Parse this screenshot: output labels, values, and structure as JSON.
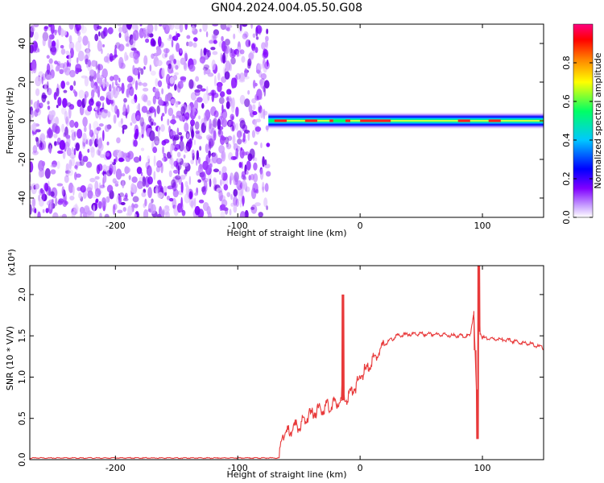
{
  "title": "GN04.2024.004.05.50.G08",
  "chart_data": [
    {
      "type": "heatmap",
      "xlabel": "Height of straight line (km)",
      "ylabel": "Frequency (Hz)",
      "xlim": [
        -270,
        150
      ],
      "ylim": [
        -50,
        50
      ],
      "xticks": [
        -200,
        -100,
        0,
        100
      ],
      "yticks": [
        -40,
        -20,
        0,
        20,
        40
      ],
      "noise_region_x": [
        -270,
        -75
      ],
      "signal_region_x": [
        -75,
        150
      ],
      "signal_center_frequency": 0,
      "colorbar": {
        "label": "Normalized spectral amplitude",
        "range": [
          0,
          1
        ],
        "ticks": [
          "0.0",
          "0.2",
          "0.4",
          "0.6",
          "0.8"
        ],
        "colors": [
          "#ffffff",
          "#8000ff",
          "#0000ff",
          "#00c8ff",
          "#00ff64",
          "#ffff00",
          "#ff8000",
          "#ff0000",
          "#ff0080"
        ]
      },
      "grid": false
    },
    {
      "type": "line",
      "xlabel": "Height of straight line (km)",
      "ylabel": "SNR (10 * V/V)",
      "y_multiplier": "(x10⁴)",
      "xlim": [
        -270,
        150
      ],
      "ylim": [
        0,
        2.35
      ],
      "xticks": [
        -200,
        -100,
        0,
        100
      ],
      "yticks": [
        "0.0",
        "0.5",
        "1.0",
        "1.5",
        "2.0"
      ],
      "line_color": "#e8393a",
      "series": [
        {
          "x": [
            -270,
            -150,
            -66,
            -64,
            -60,
            -55,
            -50,
            -45,
            -40,
            -35,
            -30,
            -25,
            -20,
            -15,
            -14,
            -13,
            -10,
            -5,
            0,
            5,
            10,
            15,
            20,
            25,
            30,
            40,
            50,
            60,
            70,
            80,
            90,
            93,
            95,
            96,
            97,
            98,
            100,
            110,
            120,
            130,
            140,
            150
          ],
          "y": [
            0.02,
            0.02,
            0.02,
            0.3,
            0.32,
            0.38,
            0.42,
            0.5,
            0.55,
            0.6,
            0.62,
            0.65,
            0.68,
            0.72,
            2.0,
            0.72,
            0.75,
            0.85,
            1.0,
            1.1,
            1.2,
            1.3,
            1.4,
            1.45,
            1.5,
            1.52,
            1.52,
            1.52,
            1.51,
            1.5,
            1.5,
            1.8,
            0.85,
            0.25,
            2.35,
            1.55,
            1.48,
            1.46,
            1.45,
            1.42,
            1.4,
            1.35
          ]
        }
      ],
      "grid": false
    }
  ]
}
